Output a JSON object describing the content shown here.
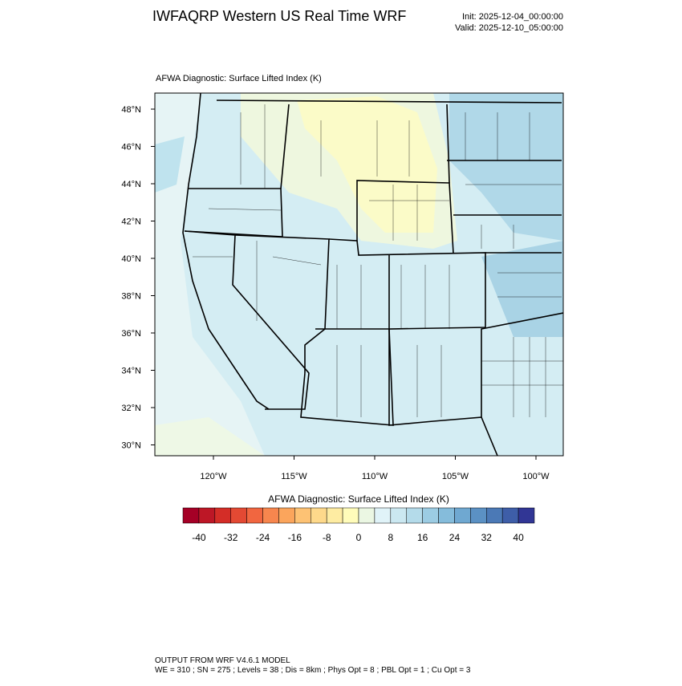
{
  "header": {
    "title": "IWFAQRP Western US Real Time WRF",
    "init": "Init: 2025-12-04_00:00:00",
    "valid": "Valid: 2025-12-10_05:00:00"
  },
  "map": {
    "title": "AFWA Diagnostic: Surface Lifted Index   (K)",
    "lat_labels": [
      "48°N",
      "46°N",
      "44°N",
      "42°N",
      "40°N",
      "38°N",
      "36°N",
      "34°N",
      "32°N",
      "30°N"
    ],
    "lon_labels": [
      "120°W",
      "115°W",
      "110°W",
      "105°W",
      "100°W"
    ]
  },
  "colorbar": {
    "title": "AFWA Diagnostic: Surface Lifted Index  (K)",
    "ticks": [
      -40,
      -32,
      -24,
      -16,
      -8,
      0,
      8,
      16,
      24,
      32,
      40
    ],
    "colors": [
      "#a50026",
      "#bd1726",
      "#d42d27",
      "#e34933",
      "#f16640",
      "#f7864e",
      "#fba55c",
      "#fdc274",
      "#fed98b",
      "#feeca2",
      "#fffcba",
      "#ebf7e3",
      "#e0f3f8",
      "#cbe8f1",
      "#b4dbea",
      "#9cccE3",
      "#85bcdb",
      "#6fa8d1",
      "#5b91c4",
      "#4b79b6",
      "#3e5ea8",
      "#313695"
    ]
  },
  "footer": {
    "line1": "OUTPUT FROM WRF V4.6.1 MODEL",
    "line2": "WE = 310 ; SN = 275 ; Levels = 38 ; Dis = 8km ; Phys Opt = 8 ; PBL Opt = 1 ; Cu Opt = 3"
  }
}
